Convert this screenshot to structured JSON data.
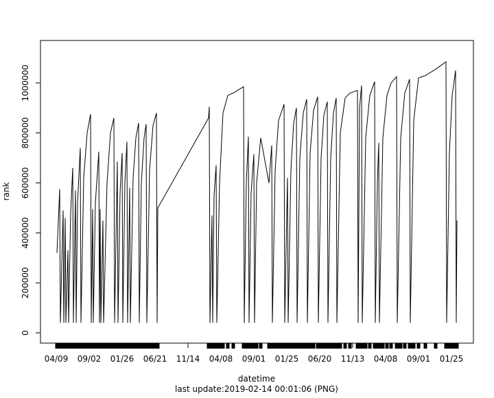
{
  "chart_data": {
    "type": "line",
    "xlabel": "datetime",
    "ylabel": "rank",
    "note": "last update:2019-02-14 00:01:06 (PNG)",
    "color": "#000000",
    "x": [
      3,
      15,
      18,
      30,
      33,
      39,
      42,
      51,
      54,
      63,
      72,
      75,
      84,
      87,
      93,
      105,
      108,
      120,
      135,
      150,
      153,
      159,
      162,
      171,
      186,
      189,
      192,
      195,
      204,
      207,
      222,
      237,
      252,
      255,
      267,
      270,
      279,
      288,
      291,
      300,
      309,
      312,
      321,
      324,
      336,
      348,
      360,
      363,
      372,
      384,
      393,
      396,
      408,
      423,
      438,
      441,
      444,
      666,
      669,
      672,
      681,
      684,
      690,
      699,
      702,
      714,
      729,
      750,
      774,
      819,
      822,
      831,
      840,
      843,
      852,
      864,
      867,
      876,
      894,
      930,
      942,
      945,
      957,
      972,
      987,
      996,
      999,
      1011,
      1014,
      1026,
      1038,
      1050,
      1053,
      1065,
      1080,
      1095,
      1098,
      1110,
      1125,
      1143,
      1146,
      1158,
      1170,
      1185,
      1188,
      1200,
      1212,
      1224,
      1227,
      1242,
      1263,
      1284,
      1317,
      1320,
      1326,
      1335,
      1338,
      1353,
      1371,
      1392,
      1395,
      1404,
      1410,
      1413,
      1428,
      1446,
      1464,
      1488,
      1491,
      1506,
      1524,
      1545,
      1548,
      1563,
      1584,
      1614,
      1659,
      1704,
      1707,
      1719,
      1731,
      1746,
      1749,
      1752
    ],
    "values": [
      320000,
      575000,
      40000,
      490000,
      40000,
      460000,
      40000,
      330000,
      40000,
      480000,
      660000,
      40000,
      570000,
      40000,
      520000,
      740000,
      40000,
      620000,
      800000,
      875000,
      40000,
      495000,
      40000,
      520000,
      725000,
      40000,
      495000,
      40000,
      450000,
      40000,
      600000,
      800000,
      860000,
      40000,
      685000,
      40000,
      560000,
      720000,
      40000,
      600000,
      765000,
      40000,
      580000,
      40000,
      620000,
      780000,
      840000,
      40000,
      600000,
      780000,
      835000,
      40000,
      650000,
      830000,
      880000,
      40000,
      500000,
      860000,
      905000,
      40000,
      470000,
      40000,
      550000,
      670000,
      40000,
      600000,
      880000,
      950000,
      960000,
      985000,
      40000,
      600000,
      785000,
      40000,
      560000,
      715000,
      40000,
      600000,
      780000,
      600000,
      750000,
      40000,
      650000,
      850000,
      890000,
      915000,
      40000,
      620000,
      40000,
      650000,
      840000,
      900000,
      40000,
      700000,
      880000,
      935000,
      40000,
      720000,
      890000,
      945000,
      40000,
      700000,
      870000,
      925000,
      40000,
      700000,
      880000,
      940000,
      40000,
      800000,
      940000,
      960000,
      970000,
      40000,
      900000,
      990000,
      40000,
      780000,
      950000,
      1005000,
      40000,
      600000,
      760000,
      40000,
      780000,
      950000,
      1000000,
      1025000,
      40000,
      780000,
      960000,
      1015000,
      40000,
      850000,
      1020000,
      1030000,
      1055000,
      1085000,
      40000,
      720000,
      950000,
      1050000,
      40000,
      450000
    ],
    "xlim": [
      -69,
      1824
    ],
    "xticks": [
      {
        "value": 0,
        "label": "04/09"
      },
      {
        "value": 144,
        "label": "09/02"
      },
      {
        "value": 288,
        "label": "01/26"
      },
      {
        "value": 432,
        "label": "06/21"
      },
      {
        "value": 576,
        "label": "11/14"
      },
      {
        "value": 720,
        "label": "04/08"
      },
      {
        "value": 864,
        "label": "09/01"
      },
      {
        "value": 1008,
        "label": "01/25"
      },
      {
        "value": 1152,
        "label": "06/20"
      },
      {
        "value": 1296,
        "label": "11/13"
      },
      {
        "value": 1440,
        "label": "04/08"
      },
      {
        "value": 1584,
        "label": "09/01"
      },
      {
        "value": 1728,
        "label": "01/25"
      }
    ],
    "ylim": [
      -41000,
      1170000
    ],
    "yticks": [
      0,
      200000,
      400000,
      600000,
      800000,
      1000000
    ],
    "rug": true
  }
}
